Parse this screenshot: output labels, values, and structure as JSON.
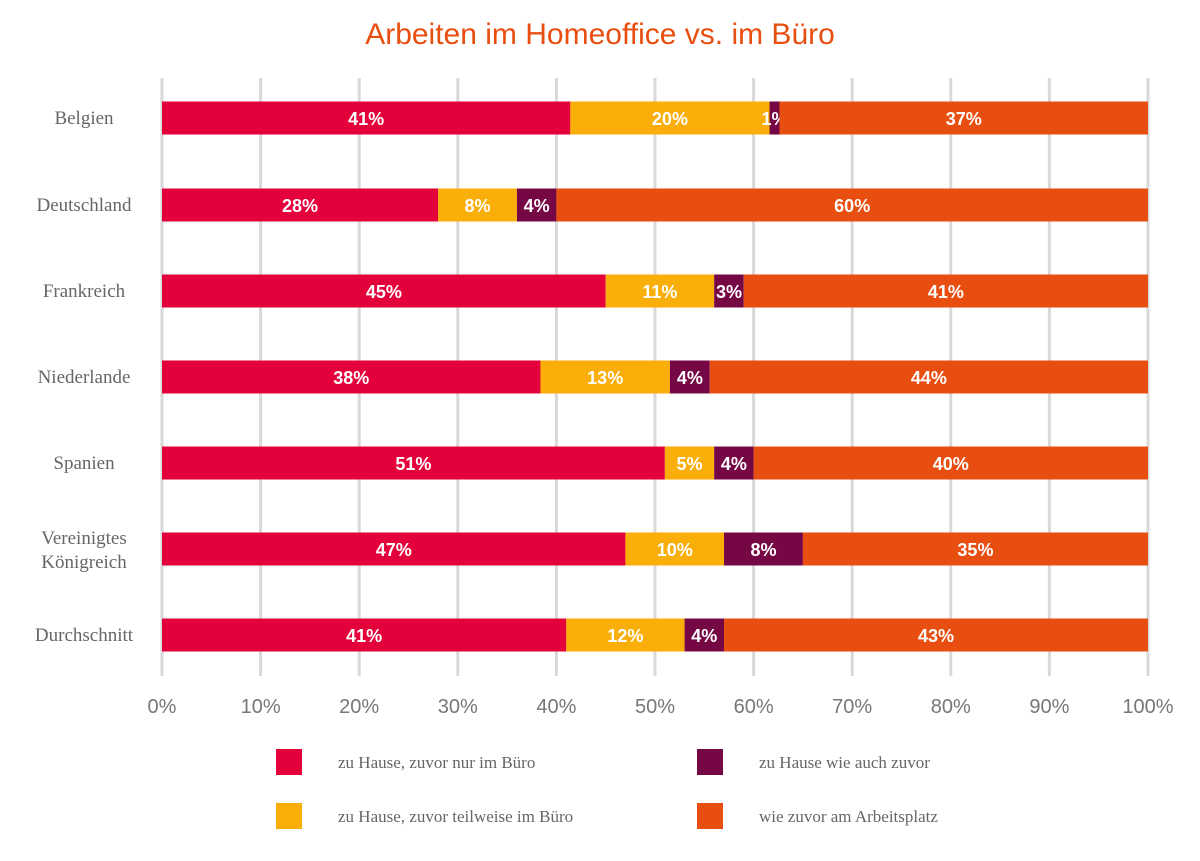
{
  "chart_data": {
    "type": "bar",
    "orientation": "horizontal",
    "stacked": true,
    "title": "Arbeiten im Homeoffice vs. im Büro",
    "categories": [
      "Belgien",
      "Deutschland",
      "Frankreich",
      "Niederlande",
      "Spanien",
      "Vereinigtes Königreich",
      "Durchschnitt"
    ],
    "series": [
      {
        "name": "zu Hause, zuvor nur im Büro",
        "color": "#e4003a",
        "values": [
          41,
          28,
          45,
          38,
          51,
          47,
          41
        ]
      },
      {
        "name": "zu Hause, zuvor teilweise im Büro",
        "color": "#f9ae0a",
        "values": [
          20,
          8,
          11,
          13,
          5,
          10,
          12
        ]
      },
      {
        "name": "zu Hause wie auch zuvor",
        "color": "#760745",
        "values": [
          1,
          4,
          3,
          4,
          4,
          8,
          4
        ]
      },
      {
        "name": "wie zuvor am Arbeitsplatz",
        "color": "#e84e10",
        "values": [
          37,
          60,
          41,
          44,
          40,
          35,
          43
        ]
      }
    ],
    "xlim": [
      0,
      100
    ],
    "xticks": [
      "0%",
      "10%",
      "20%",
      "30%",
      "40%",
      "50%",
      "60%",
      "70%",
      "80%",
      "90%",
      "100%"
    ],
    "grid": true,
    "legend_placement": "bottom"
  }
}
